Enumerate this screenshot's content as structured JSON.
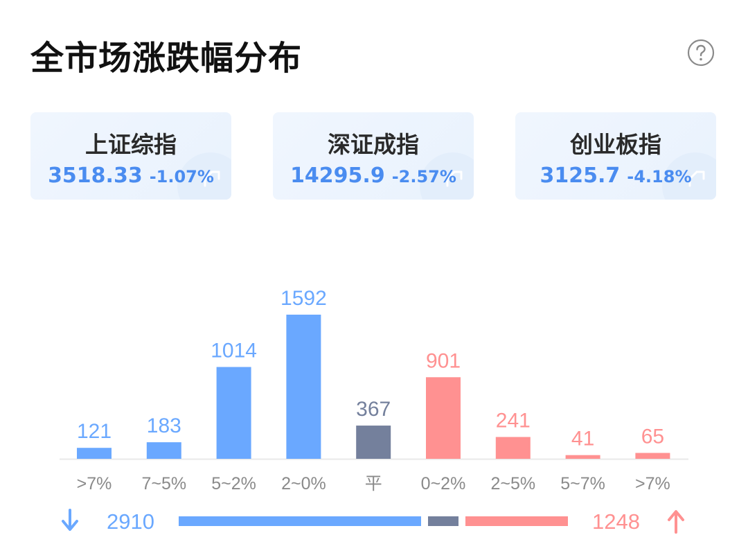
{
  "header": {
    "title": "全市场涨跌幅分布",
    "help_icon": "question-circle-icon"
  },
  "indices": [
    {
      "name": "上证综指",
      "value": "3518.33",
      "change": "-1.07%",
      "icon": "trend-up-arrow-icon"
    },
    {
      "name": "深证成指",
      "value": "14295.9",
      "change": "-2.57%",
      "icon": "trend-up-arrow-icon"
    },
    {
      "name": "创业板指",
      "value": "3125.7",
      "change": "-4.18%",
      "icon": "trend-up-arrow-icon"
    }
  ],
  "colors": {
    "down": "#6aa8ff",
    "flat": "#74809c",
    "up": "#ff9191",
    "axis": "#e8e8e8",
    "tick": "#8a8a8a",
    "index_text": "#4a8cf0"
  },
  "chart_data": {
    "type": "bar",
    "categories": [
      ">7%",
      "7~5%",
      "5~2%",
      "2~0%",
      "平",
      "0~2%",
      "2~5%",
      "5~7%",
      ">7%"
    ],
    "values": [
      121,
      183,
      1014,
      1592,
      367,
      901,
      241,
      41,
      65
    ],
    "groups": [
      "down",
      "down",
      "down",
      "down",
      "flat",
      "up",
      "up",
      "up",
      "up"
    ],
    "title": "",
    "xlabel": "",
    "ylabel": "",
    "ylim": [
      0,
      1592
    ],
    "grid": false,
    "data_labels": true
  },
  "summary": {
    "down_total": "2910",
    "up_total": "1248",
    "down_icon": "arrow-down-icon",
    "up_icon": "arrow-up-icon"
  }
}
